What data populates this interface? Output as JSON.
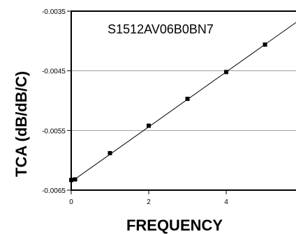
{
  "chart_data": {
    "type": "scatter",
    "title": "S1512AV06B0BN7",
    "xlabel": "FREQUENCY",
    "ylabel": "TCA (dB/dB/C)",
    "xlim": [
      0,
      5.8
    ],
    "ylim": [
      -0.0065,
      -0.0035
    ],
    "x_ticks": [
      0,
      2,
      4
    ],
    "x_tick_labels": [
      "0",
      "2",
      "4"
    ],
    "y_ticks": [
      -0.0035,
      -0.0045,
      -0.0055,
      -0.0065
    ],
    "y_tick_labels": [
      "-0.0035",
      "-0.0045",
      "-0.0055",
      "-0.0065"
    ],
    "grid": true,
    "legend": "none",
    "series": [
      {
        "x": [
          0,
          0.1,
          1,
          2,
          3,
          4,
          5
        ],
        "y": [
          -0.00633,
          -0.00632,
          -0.00588,
          -0.00542,
          -0.00497,
          -0.00452,
          -0.00406
        ],
        "marker": "square",
        "color": "#000000"
      }
    ],
    "trend_line": {
      "x": [
        0,
        5.8
      ],
      "y": [
        -0.00636,
        -0.00369
      ],
      "color": "#000000"
    }
  }
}
